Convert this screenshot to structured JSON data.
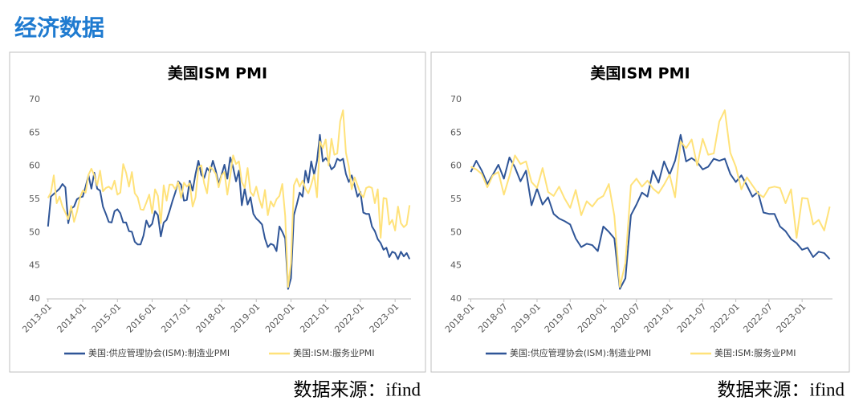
{
  "header": {
    "title": "经济数据"
  },
  "chart_data": [
    {
      "type": "line",
      "title": "美国ISM  PMI",
      "source": "数据来源：ifind",
      "categories": [
        "2013-01",
        null,
        null,
        null,
        null,
        null,
        null,
        null,
        null,
        null,
        null,
        null,
        "2014-01",
        null,
        null,
        null,
        null,
        null,
        null,
        null,
        null,
        null,
        null,
        null,
        "2015-01",
        null,
        null,
        null,
        null,
        null,
        null,
        null,
        null,
        null,
        null,
        null,
        "2016-01",
        null,
        null,
        null,
        null,
        null,
        null,
        null,
        null,
        null,
        null,
        null,
        "2017-01",
        null,
        null,
        null,
        null,
        null,
        null,
        null,
        null,
        null,
        null,
        null,
        "2018-01",
        null,
        null,
        null,
        null,
        null,
        null,
        null,
        null,
        null,
        null,
        null,
        "2019-01",
        null,
        null,
        null,
        null,
        null,
        null,
        null,
        null,
        null,
        null,
        null,
        "2020-01",
        null,
        null,
        null,
        null,
        null,
        null,
        null,
        null,
        null,
        null,
        null,
        "2021-01",
        null,
        null,
        null,
        null,
        null,
        null,
        null,
        null,
        null,
        null,
        null,
        "2022-01",
        null,
        null,
        null,
        null,
        null,
        null,
        null,
        null,
        null,
        null,
        null,
        "2023-01",
        null,
        null,
        null,
        null,
        null
      ],
      "ylim": [
        40,
        70
      ],
      "yticks": [
        40,
        45,
        50,
        55,
        60,
        65,
        70
      ],
      "grid": false,
      "legend": "bottom",
      "series": [
        {
          "name": "美国:供应管理协会(ISM):制造业PMI",
          "color": "#2F5597",
          "values": [
            50.9,
            55.4,
            55.8,
            56.2,
            56.6,
            57.3,
            56.8,
            51.4,
            53.6,
            53.9,
            55.0,
            55.3,
            55.4,
            56.9,
            58.6,
            56.6,
            59.0,
            56.6,
            56.3,
            53.9,
            52.8,
            51.6,
            51.5,
            53.2,
            53.5,
            52.9,
            51.5,
            51.5,
            50.2,
            50.1,
            48.6,
            48.2,
            48.2,
            49.5,
            51.8,
            50.8,
            51.3,
            53.2,
            52.6,
            49.4,
            51.5,
            51.9,
            53.2,
            54.7,
            56.0,
            57.7,
            57.2,
            54.8,
            54.9,
            57.8,
            56.3,
            58.8,
            60.8,
            58.7,
            58.2,
            59.7,
            59.1,
            60.8,
            59.3,
            57.3,
            58.7,
            60.2,
            58.1,
            61.3,
            59.8,
            57.7,
            59.3,
            54.1,
            56.6,
            54.2,
            55.3,
            52.8,
            52.1,
            51.7,
            51.2,
            49.1,
            47.8,
            48.3,
            48.1,
            47.2,
            50.9,
            50.1,
            49.1,
            41.5,
            43.1,
            52.6,
            54.2,
            56.0,
            55.4,
            59.3,
            57.5,
            60.7,
            58.7,
            60.8,
            64.7,
            60.7,
            61.2,
            60.6,
            59.5,
            59.9,
            61.1,
            60.8,
            61.1,
            58.8,
            57.6,
            58.6,
            57.1,
            55.4,
            56.1,
            53.0,
            52.8,
            52.8,
            50.9,
            50.2,
            49.0,
            48.4,
            47.4,
            47.7,
            46.3,
            47.1,
            46.9,
            46.0,
            47.1,
            46.4,
            46.9,
            46.0
          ]
        },
        {
          "name": "美国:ISM:服务业PMI",
          "color": "#FFE27A",
          "values": [
            55.2,
            56.0,
            58.6,
            54.4,
            55.4,
            53.9,
            53.0,
            52.0,
            54.0,
            51.6,
            53.1,
            55.2,
            56.3,
            56.0,
            58.7,
            59.6,
            58.6,
            57.1,
            59.3,
            56.2,
            56.7,
            56.9,
            56.5,
            57.8,
            55.7,
            56.0,
            60.3,
            59.0,
            56.9,
            59.1,
            55.9,
            55.3,
            53.5,
            53.4,
            54.5,
            55.7,
            52.9,
            56.5,
            55.5,
            51.4,
            57.1,
            54.8,
            57.2,
            57.2,
            56.5,
            57.6,
            55.2,
            57.5,
            56.9,
            57.4,
            53.9,
            55.3,
            59.8,
            60.1,
            57.4,
            55.9,
            59.9,
            59.5,
            58.8,
            56.8,
            58.6,
            59.1,
            55.7,
            58.5,
            61.6,
            60.3,
            60.7,
            57.6,
            56.7,
            59.7,
            56.1,
            55.5,
            56.9,
            55.1,
            53.7,
            56.4,
            52.6,
            54.7,
            53.9,
            55.0,
            55.5,
            57.3,
            52.5,
            41.8,
            45.4,
            57.1,
            58.1,
            56.9,
            57.8,
            56.6,
            55.9,
            57.2,
            58.7,
            55.3,
            63.7,
            62.7,
            64.0,
            60.1,
            64.1,
            61.7,
            61.9,
            66.7,
            68.4,
            62.0,
            59.9,
            56.5,
            58.3,
            57.1,
            55.9,
            55.3,
            56.7,
            56.9,
            56.7,
            54.4,
            56.5,
            49.2,
            55.2,
            55.1,
            51.2,
            51.9,
            50.3,
            53.9,
            51.4,
            50.8,
            51.2,
            54.1
          ]
        }
      ]
    },
    {
      "type": "line",
      "title": "美国ISM  PMI",
      "source": "数据来源：ifind",
      "categories": [
        "2018-01",
        null,
        null,
        null,
        null,
        null,
        "2018-07",
        null,
        null,
        null,
        null,
        null,
        "2019-01",
        null,
        null,
        null,
        null,
        null,
        "2019-07",
        null,
        null,
        null,
        null,
        null,
        "2020-01",
        null,
        null,
        null,
        null,
        null,
        "2020-07",
        null,
        null,
        null,
        null,
        null,
        "2021-01",
        null,
        null,
        null,
        null,
        null,
        "2021-07",
        null,
        null,
        null,
        null,
        null,
        "2022-01",
        null,
        null,
        null,
        null,
        null,
        "2022-07",
        null,
        null,
        null,
        null,
        null,
        "2023-01",
        null,
        null,
        null,
        null,
        null
      ],
      "ylim": [
        40,
        70
      ],
      "yticks": [
        40,
        45,
        50,
        55,
        60,
        65,
        70
      ],
      "grid": false,
      "legend": "bottom",
      "series": [
        {
          "name": "美国:供应管理协会(ISM):制造业PMI",
          "color": "#2F5597",
          "values": [
            59.1,
            60.8,
            59.3,
            57.3,
            58.7,
            60.2,
            58.1,
            61.3,
            59.8,
            57.7,
            59.3,
            54.1,
            56.6,
            54.2,
            55.3,
            52.8,
            52.1,
            51.7,
            51.2,
            49.1,
            47.8,
            48.3,
            48.1,
            47.2,
            50.9,
            50.1,
            49.1,
            41.5,
            43.1,
            52.6,
            54.2,
            56.0,
            55.4,
            59.3,
            57.5,
            60.7,
            58.7,
            60.8,
            64.7,
            60.7,
            61.2,
            60.6,
            59.5,
            59.9,
            61.1,
            60.8,
            61.1,
            58.8,
            57.6,
            58.6,
            57.1,
            55.4,
            56.1,
            53.0,
            52.8,
            52.8,
            50.9,
            50.2,
            49.0,
            48.4,
            47.4,
            47.7,
            46.3,
            47.1,
            46.9,
            46.0
          ]
        },
        {
          "name": "美国:ISM:服务业PMI",
          "color": "#FFE27A",
          "values": [
            59.9,
            59.5,
            58.8,
            56.8,
            58.6,
            59.1,
            55.7,
            58.5,
            61.6,
            60.3,
            60.7,
            57.6,
            56.7,
            59.7,
            56.1,
            55.5,
            56.9,
            55.1,
            53.7,
            56.4,
            52.6,
            54.7,
            53.9,
            55.0,
            55.5,
            57.3,
            52.5,
            41.8,
            45.4,
            57.1,
            58.1,
            56.9,
            57.8,
            56.6,
            55.9,
            57.2,
            58.7,
            55.3,
            63.7,
            62.7,
            64.0,
            60.1,
            64.1,
            61.7,
            61.9,
            66.7,
            68.4,
            62.0,
            59.9,
            56.5,
            58.3,
            57.1,
            55.9,
            55.3,
            56.7,
            56.9,
            56.7,
            54.4,
            56.5,
            49.2,
            55.2,
            55.1,
            51.2,
            51.9,
            50.3,
            53.9
          ]
        }
      ]
    }
  ]
}
